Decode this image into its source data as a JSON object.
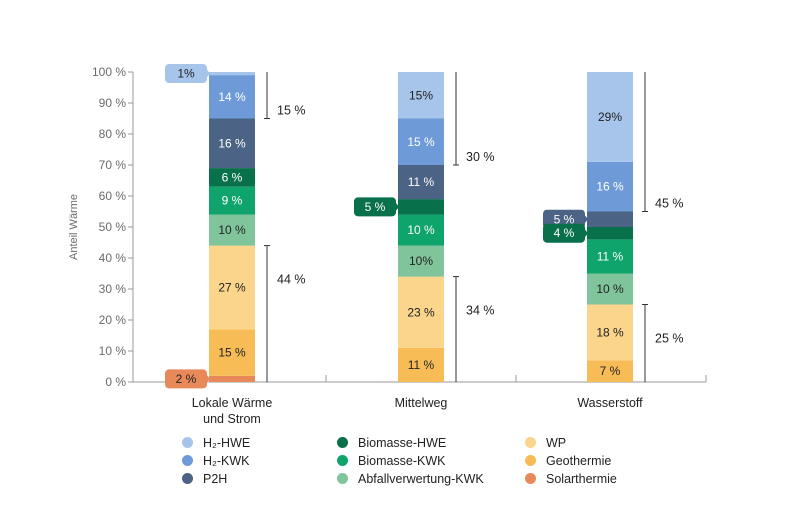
{
  "chart_data": {
    "type": "bar",
    "stacked": true,
    "title": "",
    "xlabel": "",
    "ylabel": "Anteil Wärme",
    "ylim": [
      0,
      100
    ],
    "yticks": [
      "0 %",
      "10 %",
      "20 %",
      "30 %",
      "40 %",
      "50 %",
      "60 %",
      "70 %",
      "80 %",
      "90 %",
      "100 %"
    ],
    "categories": [
      "Lokale Wärme und Strom",
      "Mittelweg",
      "Wasserstoff"
    ],
    "category_lines": [
      [
        "Lokale Wärme",
        "und Strom"
      ],
      [
        "Mittelweg"
      ],
      [
        "Wasserstoff"
      ]
    ],
    "grid": false,
    "legend_position": "bottom",
    "series": [
      {
        "name": "Solarthermie",
        "color": "#e8895a",
        "values": [
          2,
          0,
          0
        ],
        "labels": [
          "",
          "",
          ""
        ]
      },
      {
        "name": "Geothermie",
        "color": "#f7bc55",
        "values": [
          15,
          11,
          7
        ],
        "labels": [
          "15 %",
          "11 %",
          "7 %"
        ]
      },
      {
        "name": "WP",
        "color": "#fbd58b",
        "values": [
          27,
          23,
          18
        ],
        "labels": [
          "27 %",
          "23 %",
          "18 %"
        ]
      },
      {
        "name": "Abfallverwertung-KWK",
        "color": "#7fc49b",
        "values": [
          10,
          10,
          10
        ],
        "labels": [
          "10 %",
          "10%",
          "10 %"
        ]
      },
      {
        "name": "Biomasse-KWK",
        "color": "#0fa46c",
        "values": [
          9,
          10,
          11
        ],
        "labels": [
          "9 %",
          "10 %",
          "11 %"
        ]
      },
      {
        "name": "Biomasse-HWE",
        "color": "#08704a",
        "values": [
          6,
          5,
          4
        ],
        "labels": [
          "6 %",
          "",
          ""
        ]
      },
      {
        "name": "P2H",
        "color": "#4b6384",
        "values": [
          16,
          11,
          5
        ],
        "labels": [
          "16 %",
          "11 %",
          ""
        ]
      },
      {
        "name": "H₂-KWK",
        "color": "#6e9bd8",
        "values": [
          14,
          15,
          16
        ],
        "labels": [
          "14 %",
          "15 %",
          "16 %"
        ]
      },
      {
        "name": "H₂-HWE",
        "color": "#a7c5ea",
        "values": [
          1,
          15,
          29
        ],
        "labels": [
          "",
          "15%",
          "29%"
        ]
      }
    ],
    "callouts": [
      {
        "bar": 0,
        "series": "H₂-HWE",
        "text": "1%",
        "color": "#a7c5ea",
        "text_color": "#222222"
      },
      {
        "bar": 0,
        "series": "Solarthermie",
        "text": "2 %",
        "color": "#e8895a",
        "text_color": "#222222"
      },
      {
        "bar": 1,
        "series": "Biomasse-HWE",
        "text": "5 %",
        "color": "#08704a",
        "text_color": "#ffffff"
      },
      {
        "bar": 2,
        "series": "P2H",
        "text": "5 %",
        "color": "#4b6384",
        "text_color": "#ffffff"
      },
      {
        "bar": 2,
        "series": "Biomasse-HWE",
        "text": "4 %",
        "color": "#08704a",
        "text_color": "#ffffff"
      }
    ],
    "brackets": [
      {
        "bar": 0,
        "from": 85,
        "to": 100,
        "label": "15 %"
      },
      {
        "bar": 0,
        "from": 0,
        "to": 44,
        "label": "44 %"
      },
      {
        "bar": 1,
        "from": 70,
        "to": 100,
        "label": "30 %"
      },
      {
        "bar": 1,
        "from": 0,
        "to": 34,
        "label": "34 %"
      },
      {
        "bar": 2,
        "from": 55,
        "to": 100,
        "label": "45 %"
      },
      {
        "bar": 2,
        "from": 0,
        "to": 25,
        "label": "25 %"
      }
    ]
  },
  "legend": [
    {
      "label": "H₂-HWE",
      "color": "#a7c5ea"
    },
    {
      "label": "H₂-KWK",
      "color": "#6e9bd8"
    },
    {
      "label": "P2H",
      "color": "#4b6384"
    },
    {
      "label": "Biomasse-HWE",
      "color": "#08704a"
    },
    {
      "label": "Biomasse-KWK",
      "color": "#0fa46c"
    },
    {
      "label": "Abfallverwertung-KWK",
      "color": "#7fc49b"
    },
    {
      "label": "WP",
      "color": "#fbd58b"
    },
    {
      "label": "Geothermie",
      "color": "#f7bc55"
    },
    {
      "label": "Solarthermie",
      "color": "#e8895a"
    }
  ]
}
